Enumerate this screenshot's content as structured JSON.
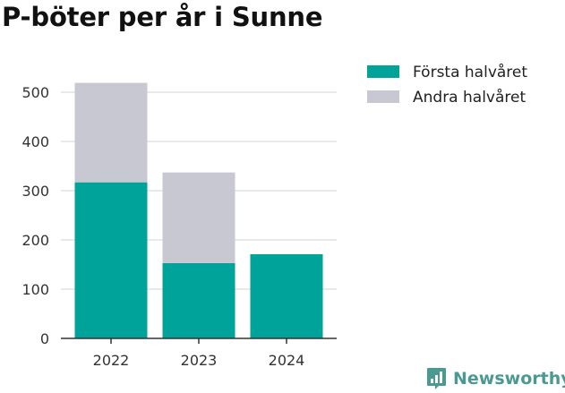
{
  "chart_data": {
    "type": "bar",
    "stacked": true,
    "title": "P-böter per år i Sunne",
    "categories": [
      "2022",
      "2023",
      "2024"
    ],
    "series": [
      {
        "name": "Första halvåret",
        "color": "#00a39a",
        "values": [
          317,
          153,
          171
        ]
      },
      {
        "name": "Andra halvåret",
        "color": "#c8c8d2",
        "values": [
          202,
          184,
          0
        ]
      }
    ],
    "ylim": [
      0,
      500
    ],
    "yticks": [
      0,
      100,
      200,
      300,
      400,
      500
    ],
    "grid": true,
    "legend": "top-right",
    "xlabel": "",
    "ylabel": ""
  },
  "brand": {
    "name": "Newsworthy",
    "logo_icon": "newsworthy-logo-icon",
    "color": "#4a9a91"
  }
}
